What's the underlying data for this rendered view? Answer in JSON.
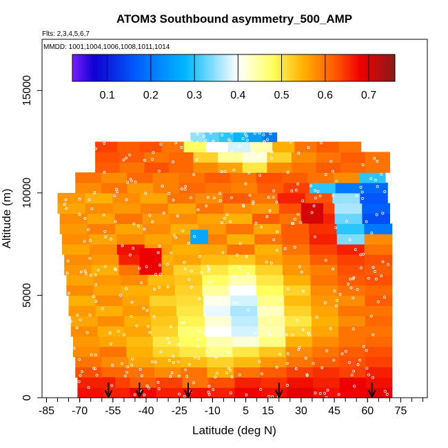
{
  "chart_data": {
    "type": "heatmap",
    "title": "ATOM3 Southbound asymmetry_500_AMP",
    "flights_label": "Flts: 2,3,4,5,6,7",
    "dates_label": "MMDD: 1001,1004,1006,1008,1011,1014",
    "xlabel": "Latitude (deg N)",
    "ylabel": "Altitude (m)",
    "xlim": [
      -87,
      87
    ],
    "ylim": [
      0,
      17500
    ],
    "x_ticks": [
      -85,
      -70,
      -55,
      -40,
      -25,
      -10,
      5,
      15,
      30,
      45,
      60,
      75
    ],
    "x_tick_labels": [
      "-85",
      "-70",
      "-55",
      "-40",
      "-25",
      "-10",
      "5",
      "15",
      "30",
      "45",
      "60",
      "75"
    ],
    "y_ticks": [
      0,
      5000,
      10000,
      15000
    ],
    "y_tick_labels": [
      "0",
      "5000",
      "10000",
      "15000"
    ],
    "colorbar": {
      "range": [
        0.02,
        0.76
      ],
      "ticks": [
        0.1,
        0.2,
        0.3,
        0.4,
        0.5,
        0.6,
        0.7
      ],
      "tick_labels": [
        "0.1",
        "0.2",
        "0.3",
        "0.4",
        "0.5",
        "0.6",
        "0.7"
      ],
      "stops": [
        {
          "value": 0.02,
          "color": "#7a1fff"
        },
        {
          "value": 0.07,
          "color": "#1000d0"
        },
        {
          "value": 0.17,
          "color": "#0060ff"
        },
        {
          "value": 0.28,
          "color": "#00b8ff"
        },
        {
          "value": 0.4,
          "color": "#ffffff"
        },
        {
          "value": 0.48,
          "color": "#ffff60"
        },
        {
          "value": 0.55,
          "color": "#ffb000"
        },
        {
          "value": 0.63,
          "color": "#ff5000"
        },
        {
          "value": 0.68,
          "color": "#ee0000"
        },
        {
          "value": 0.76,
          "color": "#8b1a1a"
        }
      ]
    },
    "profile_arrows_lat": [
      -57,
      -43,
      -21,
      20,
      62
    ],
    "rows": [
      {
        "alt": [
          0,
          500
        ],
        "lat": [
          -71,
          71
        ],
        "values": [
          0.67,
          0.66,
          0.68,
          0.66,
          0.67,
          0.66,
          0.68,
          0.67,
          0.69,
          0.67,
          0.68,
          0.69
        ]
      },
      {
        "alt": [
          500,
          1000
        ],
        "lat": [
          -71,
          71
        ],
        "values": [
          0.66,
          0.64,
          0.62,
          0.64,
          0.6,
          0.63,
          0.66,
          0.65,
          0.67,
          0.66,
          0.68,
          0.67
        ]
      },
      {
        "alt": [
          1000,
          1500
        ],
        "lat": [
          -72,
          71
        ],
        "values": [
          0.63,
          0.61,
          0.6,
          0.58,
          0.6,
          0.55,
          0.6,
          0.62,
          0.64,
          0.65,
          0.64,
          0.66
        ]
      },
      {
        "alt": [
          1500,
          2000
        ],
        "lat": [
          -72,
          71
        ],
        "values": [
          0.6,
          0.58,
          0.56,
          0.55,
          0.54,
          0.52,
          0.54,
          0.57,
          0.6,
          0.62,
          0.63,
          0.64
        ]
      },
      {
        "alt": [
          2000,
          2500
        ],
        "lat": [
          -73,
          71
        ],
        "values": [
          0.58,
          0.6,
          0.55,
          0.52,
          0.5,
          0.46,
          0.5,
          0.53,
          0.58,
          0.6,
          0.62,
          0.63
        ]
      },
      {
        "alt": [
          2500,
          3000
        ],
        "lat": [
          -73,
          71
        ],
        "values": [
          0.57,
          0.56,
          0.54,
          0.5,
          0.48,
          0.44,
          0.42,
          0.46,
          0.55,
          0.58,
          0.6,
          0.61
        ]
      },
      {
        "alt": [
          3000,
          3500
        ],
        "lat": [
          -74,
          71
        ],
        "values": [
          0.58,
          0.55,
          0.56,
          0.52,
          0.47,
          0.4,
          0.38,
          0.44,
          0.52,
          0.56,
          0.6,
          0.6
        ]
      },
      {
        "alt": [
          3500,
          4000
        ],
        "lat": [
          -74,
          71
        ],
        "values": [
          0.56,
          0.58,
          0.55,
          0.53,
          0.49,
          0.42,
          0.37,
          0.45,
          0.5,
          0.55,
          0.58,
          0.61
        ]
      },
      {
        "alt": [
          4000,
          4500
        ],
        "lat": [
          -75,
          71
        ],
        "values": [
          0.57,
          0.55,
          0.57,
          0.54,
          0.5,
          0.39,
          0.36,
          0.43,
          0.52,
          0.56,
          0.6,
          0.6
        ]
      },
      {
        "alt": [
          4500,
          5000
        ],
        "lat": [
          -75,
          71
        ],
        "values": [
          0.55,
          0.58,
          0.56,
          0.52,
          0.51,
          0.41,
          0.38,
          0.46,
          0.54,
          0.57,
          0.58,
          0.62
        ]
      },
      {
        "alt": [
          5000,
          5500
        ],
        "lat": [
          -76,
          71
        ],
        "values": [
          0.58,
          0.56,
          0.55,
          0.55,
          0.52,
          0.45,
          0.4,
          0.48,
          0.52,
          0.58,
          0.6,
          0.61
        ]
      },
      {
        "alt": [
          5500,
          6000
        ],
        "lat": [
          -76,
          71
        ],
        "values": [
          0.56,
          0.57,
          0.58,
          0.54,
          0.53,
          0.48,
          0.44,
          0.5,
          0.55,
          0.6,
          0.62,
          0.63
        ]
      },
      {
        "alt": [
          6000,
          6500
        ],
        "lat": [
          -77,
          71
        ],
        "values": [
          0.57,
          0.55,
          0.6,
          0.56,
          0.52,
          0.5,
          0.48,
          0.52,
          0.57,
          0.59,
          0.63,
          0.62
        ]
      },
      {
        "alt": [
          6500,
          7000
        ],
        "lat": [
          -77,
          71
        ],
        "values": [
          0.58,
          0.57,
          0.66,
          0.55,
          0.56,
          0.54,
          0.53,
          0.56,
          0.58,
          0.62,
          0.64,
          0.63
        ]
      },
      {
        "alt": [
          7000,
          7500
        ],
        "lat": [
          -78,
          71
        ],
        "values": [
          0.56,
          0.58,
          0.67,
          0.57,
          0.55,
          0.56,
          0.6,
          0.55,
          0.6,
          0.64,
          0.66,
          0.6
        ]
      },
      {
        "alt": [
          7500,
          8000
        ],
        "lat": [
          -78,
          71
        ],
        "values": [
          0.58,
          0.56,
          0.58,
          0.56,
          0.57,
          0.59,
          0.55,
          0.6,
          0.62,
          0.66,
          0.34,
          0.58
        ]
      },
      {
        "alt": [
          8000,
          8500
        ],
        "lat": [
          -79,
          71
        ],
        "values": [
          0.57,
          0.59,
          0.56,
          0.58,
          0.55,
          0.57,
          0.6,
          0.56,
          0.62,
          0.65,
          0.3,
          0.2
        ]
      },
      {
        "alt": [
          8500,
          9000
        ],
        "lat": [
          -79,
          70
        ],
        "values": [
          0.58,
          0.56,
          0.6,
          0.57,
          0.58,
          0.56,
          0.55,
          0.62,
          0.6,
          0.66,
          0.33,
          0.15
        ]
      },
      {
        "alt": [
          9000,
          9500
        ],
        "lat": [
          -80,
          70
        ],
        "values": [
          0.56,
          0.58,
          0.57,
          0.59,
          0.56,
          0.6,
          0.58,
          0.57,
          0.63,
          0.64,
          0.36,
          0.17
        ]
      },
      {
        "alt": [
          9500,
          10000
        ],
        "lat": [
          -80,
          69
        ],
        "values": [
          0.57,
          0.55,
          0.58,
          0.56,
          0.6,
          0.58,
          0.62,
          0.6,
          0.66,
          0.63,
          0.35,
          0.16
        ]
      },
      {
        "alt": [
          10000,
          10500
        ],
        "lat": [
          -72,
          69
        ],
        "values": [
          0.58,
          0.6,
          0.57,
          0.59,
          0.61,
          0.6,
          0.59,
          0.62,
          0.64,
          0.3,
          0.2,
          0.18
        ]
      },
      {
        "alt": [
          10500,
          11000
        ],
        "lat": [
          -72,
          68
        ],
        "values": [
          0.6,
          0.58,
          0.61,
          0.59,
          0.6,
          0.62,
          0.6,
          0.63,
          0.62,
          0.6,
          0.58,
          0.3
        ]
      },
      {
        "alt": [
          11000,
          11500
        ],
        "lat": [
          -63,
          70
        ],
        "values": [
          0.62,
          0.6,
          0.63,
          0.61,
          0.58,
          0.56,
          0.5,
          0.58,
          0.6,
          0.62,
          0.61,
          0.6
        ]
      },
      {
        "alt": [
          11500,
          12000
        ],
        "lat": [
          -63,
          70
        ],
        "values": [
          0.63,
          0.62,
          0.6,
          0.61,
          0.52,
          0.45,
          0.42,
          0.52,
          0.58,
          0.6,
          0.62,
          0.6
        ]
      },
      {
        "alt": [
          12000,
          12500
        ],
        "lat": [
          -63,
          57
        ],
        "values": [
          0.64,
          0.62,
          0.63,
          0.6,
          0.48,
          0.4,
          0.38,
          0.44,
          0.55,
          0.6,
          0.62,
          0.6
        ]
      },
      {
        "alt": [
          12500,
          12950
        ],
        "lat": [
          -20,
          19
        ],
        "values": [
          0.35,
          0.32,
          0.3,
          0.28,
          0.25,
          0.2
        ]
      }
    ],
    "hotspots": [
      {
        "lat": [
          -43,
          -33
        ],
        "alt": [
          6000,
          7300
        ],
        "value": 0.68
      },
      {
        "lat": [
          -60,
          -54
        ],
        "alt": [
          500,
          1000
        ],
        "value": 0.66
      },
      {
        "lat": [
          30,
          40
        ],
        "alt": [
          8500,
          9500
        ],
        "value": 0.7
      },
      {
        "lat": [
          -20,
          -12
        ],
        "alt": [
          7500,
          8200
        ],
        "value": 0.26
      }
    ]
  }
}
